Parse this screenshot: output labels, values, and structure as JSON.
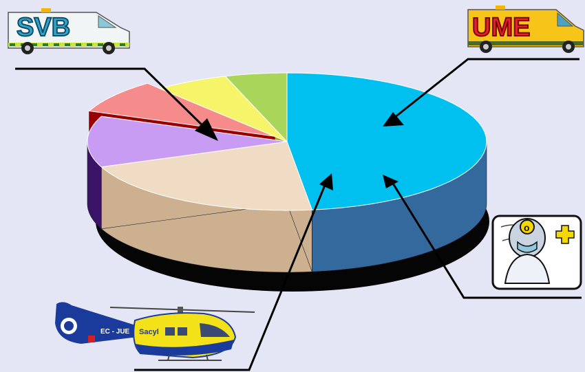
{
  "chart_data": {
    "type": "pie",
    "title": "",
    "labels": [
      "SVB",
      "UME",
      "",
      "",
      "",
      ""
    ],
    "values": [
      48,
      21,
      12,
      8,
      6,
      5
    ],
    "colors": {
      "top": [
        "#00c0ef",
        "#f0dcc4",
        "#c89cf2",
        "#f58b8b",
        "#f6f56a",
        "#a9d65a"
      ],
      "side": [
        "#34699e",
        "#ccb090",
        "#3b1366",
        "#990000",
        "#a9a032",
        "#8aab3e"
      ]
    },
    "grid": false,
    "legend": "none"
  },
  "vehicles": {
    "svb_badge": "SVB",
    "ume_badge": "UME",
    "helicopter_reg": "EC - JUE",
    "helicopter_brand": "Sacyl"
  }
}
